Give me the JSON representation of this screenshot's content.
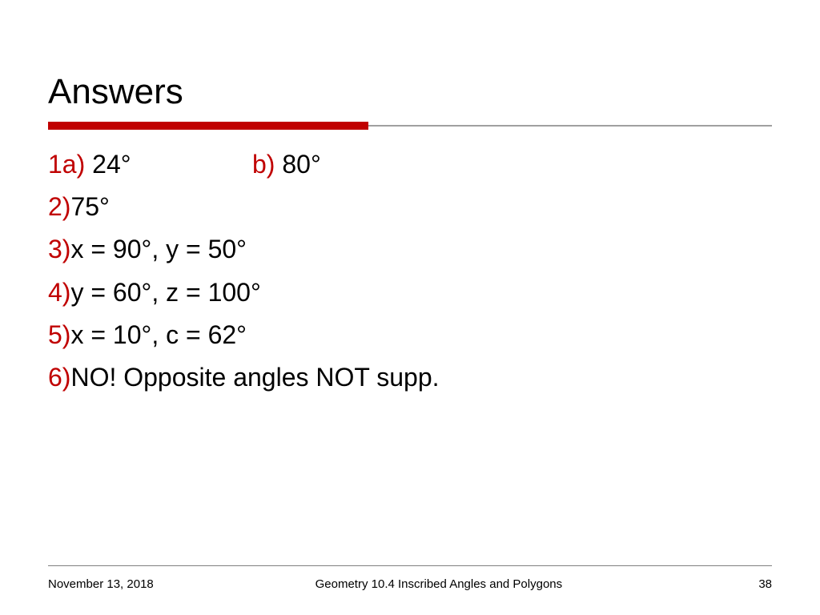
{
  "slide": {
    "title": "Answers",
    "title_color": "#000000",
    "title_fontsize": 44,
    "accent_bar_color": "#c00000",
    "accent_bar_width": 400,
    "underline_gray_color": "#a0a0a0",
    "background_color": "#ffffff",
    "answers": [
      {
        "parts": [
          {
            "label": "1a)",
            "value": " 24°"
          },
          {
            "label": "b)",
            "value": " 80°"
          }
        ]
      },
      {
        "label": "2)",
        "value": " 75°"
      },
      {
        "label": "3)",
        "value": " x = 90°, y = 50°"
      },
      {
        "label": "4)",
        "value": " y = 60°, z = 100°"
      },
      {
        "label": "5)",
        "value": " x = 10°, c = 62°"
      },
      {
        "label": "6)",
        "value": " NO! Opposite angles NOT supp."
      }
    ],
    "label_color": "#c00000",
    "value_color": "#000000",
    "content_fontsize": 32,
    "footer": {
      "date": "November 13, 2018",
      "center": "Geometry 10.4 Inscribed Angles and Polygons",
      "page": "38",
      "fontsize": 15,
      "border_color": "#808080"
    }
  }
}
